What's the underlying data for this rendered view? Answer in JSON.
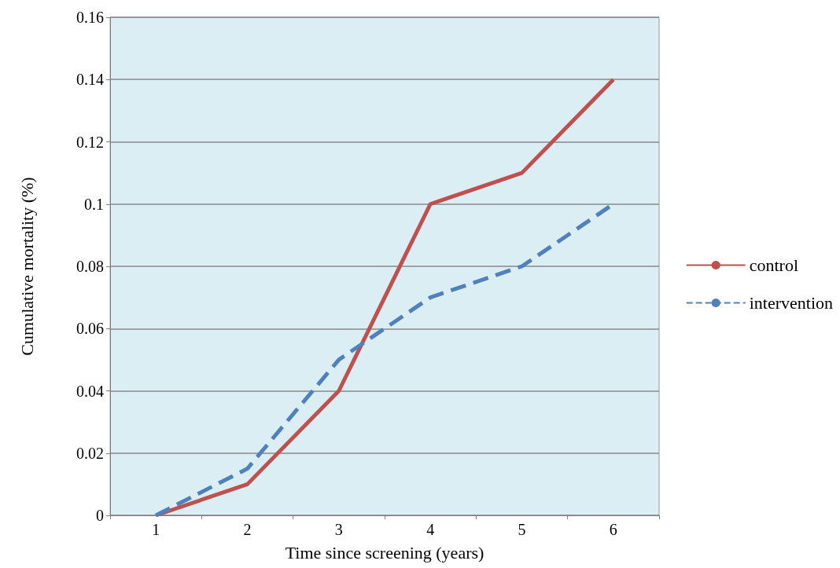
{
  "chart_data": {
    "type": "line",
    "xlabel": "Time since screening (years)",
    "ylabel": "Cumulative mortality (%)",
    "categories": [
      "1",
      "2",
      "3",
      "4",
      "5",
      "6"
    ],
    "series": [
      {
        "name": "control",
        "color": "#c0504d",
        "values": [
          0,
          0.01,
          0.04,
          0.1,
          0.11,
          0.14
        ],
        "line_style": "solid"
      },
      {
        "name": "intervention",
        "color": "#4f81bd",
        "values": [
          0,
          0.015,
          0.05,
          0.07,
          0.08,
          0.1
        ],
        "line_style": "dashed"
      }
    ],
    "ylim": [
      0,
      0.16
    ],
    "yticks": [
      0,
      0.02,
      0.04,
      0.06,
      0.08,
      0.1,
      0.12,
      0.14,
      0.16
    ],
    "grid": "y",
    "legend": "right",
    "marker": "none"
  }
}
